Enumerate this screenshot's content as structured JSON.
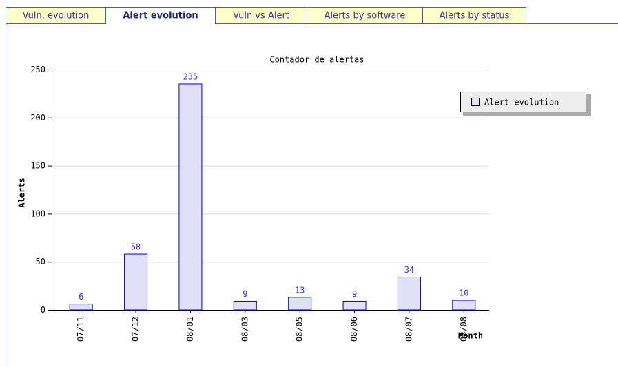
{
  "tabs": [
    {
      "label": "Vuln. evolution",
      "active": false
    },
    {
      "label": "Alert evolution",
      "active": true
    },
    {
      "label": "Vuln vs Alert",
      "active": false
    },
    {
      "label": "Alerts by software",
      "active": false
    },
    {
      "label": "Alerts by status",
      "active": false
    }
  ],
  "chart_data": {
    "type": "bar",
    "title": "Contador de alertas",
    "x_label": "Month",
    "y_label": "Alerts",
    "categories": [
      "07/11",
      "07/12",
      "08/01",
      "08/03",
      "08/05",
      "08/06",
      "08/07",
      "08/08"
    ],
    "series": [
      {
        "name": "Alert evolution",
        "color": "#e0e0f8",
        "values": [
          6,
          58,
          235,
          9,
          13,
          9,
          34,
          10
        ]
      }
    ],
    "ylim": [
      0,
      250
    ],
    "yticks": [
      0,
      50,
      100,
      150,
      200,
      250
    ],
    "grid": true,
    "legend": "right"
  }
}
